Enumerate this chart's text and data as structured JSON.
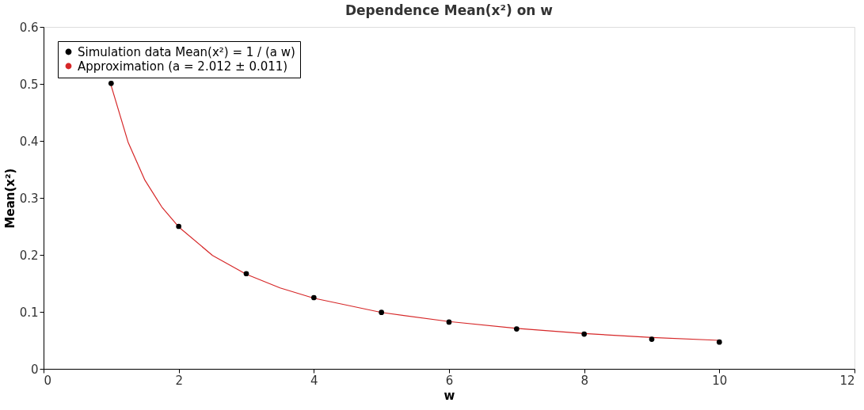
{
  "chart_data": {
    "type": "scatter",
    "title": "Dependence Mean(x²) on w",
    "xlabel": "w",
    "ylabel": "Mean(x²)",
    "series": [
      {
        "name": "Simulation data Mean(x²) = 1 / (a w)",
        "type": "scatter",
        "marker": "circle",
        "color": "#000000",
        "x": [
          1,
          2,
          3,
          4,
          5,
          6,
          7,
          8,
          9,
          10
        ],
        "values": [
          0.501,
          0.25,
          0.167,
          0.125,
          0.099,
          0.082,
          0.07,
          0.061,
          0.052,
          0.047
        ]
      },
      {
        "name": "Approximation (a = 2.012 ± 0.011)",
        "type": "line",
        "color": "#d62728",
        "x": [
          1,
          1.25,
          1.5,
          1.75,
          2,
          2.5,
          3,
          3.5,
          4,
          5,
          6,
          7,
          8,
          9,
          10
        ],
        "values": [
          0.497,
          0.398,
          0.331,
          0.284,
          0.249,
          0.199,
          0.166,
          0.142,
          0.124,
          0.099,
          0.083,
          0.071,
          0.062,
          0.055,
          0.05
        ]
      }
    ],
    "xlim": [
      0,
      12
    ],
    "xticks": [
      0,
      2,
      4,
      6,
      8,
      10,
      12
    ],
    "ylim": [
      0,
      0.6
    ],
    "yticks": [
      0,
      0.1,
      0.2,
      0.3,
      0.4,
      0.5,
      0.6
    ],
    "grid": false,
    "legend": "top left"
  }
}
